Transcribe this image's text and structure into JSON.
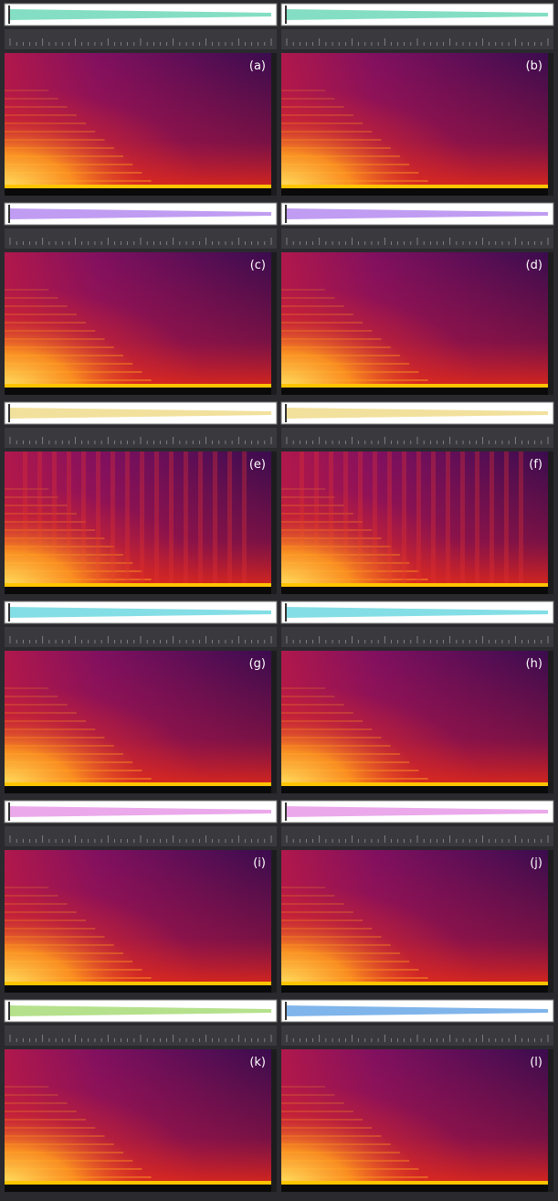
{
  "panels": [
    {
      "label": "(a)",
      "waveform_color": "#6fd8b8"
    },
    {
      "label": "(b)",
      "waveform_color": "#6fd8b8"
    },
    {
      "label": "(c)",
      "waveform_color": "#b58cf0"
    },
    {
      "label": "(d)",
      "waveform_color": "#b58cf0"
    },
    {
      "label": "(e)",
      "waveform_color": "#f0dc8c"
    },
    {
      "label": "(f)",
      "waveform_color": "#f0dc8c"
    },
    {
      "label": "(g)",
      "waveform_color": "#6fd8e0"
    },
    {
      "label": "(h)",
      "waveform_color": "#6fd8e0"
    },
    {
      "label": "(i)",
      "waveform_color": "#e89ae8"
    },
    {
      "label": "(j)",
      "waveform_color": "#e89ae8"
    },
    {
      "label": "(k)",
      "waveform_color": "#a8dc78"
    },
    {
      "label": "(l)",
      "waveform_color": "#6aa8e8"
    }
  ]
}
